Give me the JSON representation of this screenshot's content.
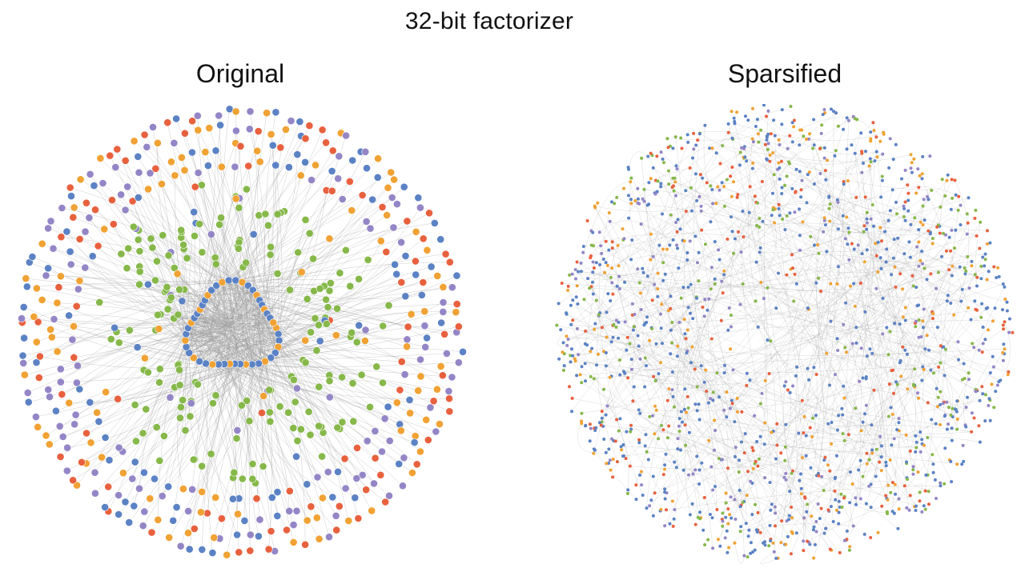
{
  "figure": {
    "title": "32-bit factorizer"
  },
  "panels": [
    {
      "id": "original",
      "title": "Original"
    },
    {
      "id": "sparsified",
      "title": "Sparsified"
    }
  ],
  "node_colors": {
    "blue": "#5b82c4",
    "orange": "#f0a234",
    "green": "#86b84a",
    "purple": "#9486c6",
    "red": "#e8613f"
  },
  "edge_color": "#9a9a9a"
}
